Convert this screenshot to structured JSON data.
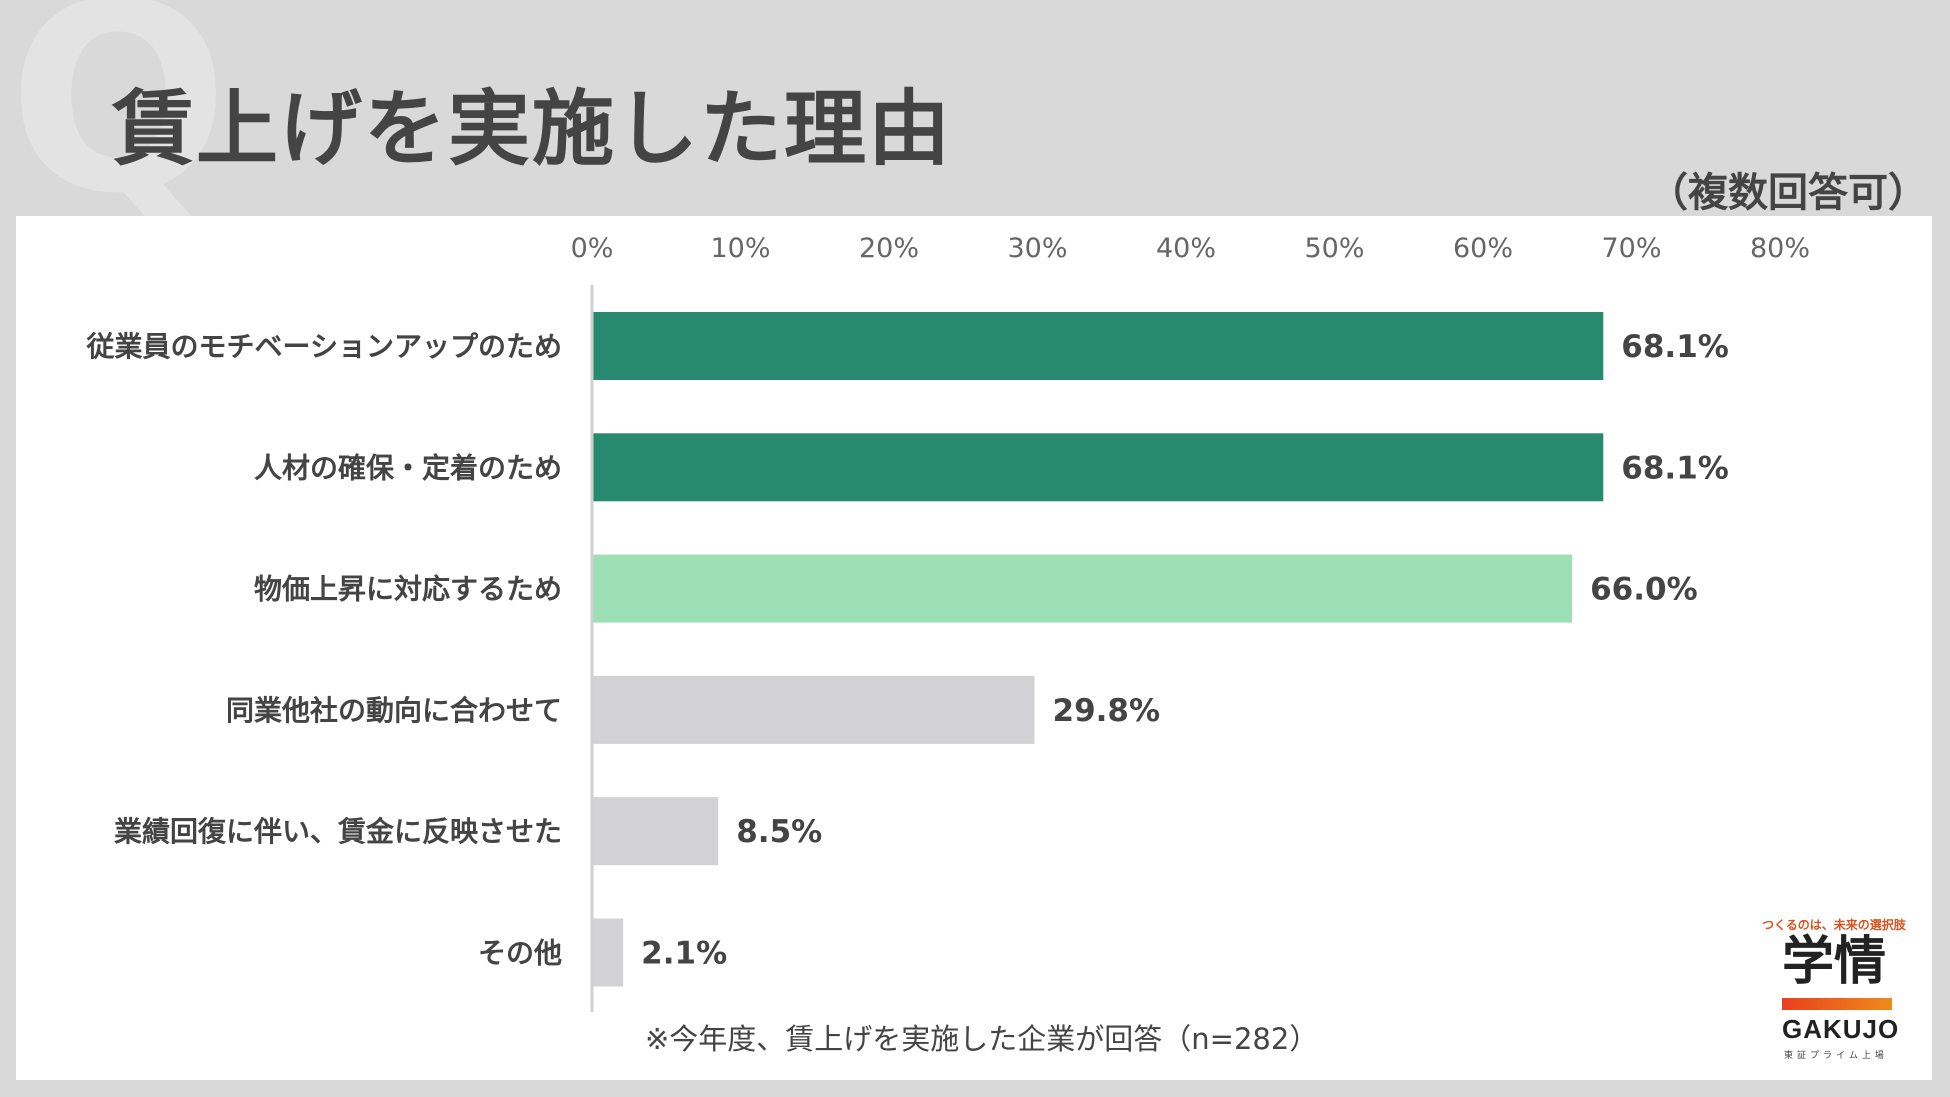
{
  "watermark": "Q",
  "title": "賃上げを実施した理由",
  "subtitle_note": "（複数回答可）",
  "footnote": "※今年度、賃上げを実施した企業が回答（n=282）",
  "logo": {
    "tagline": "つくるのは、未来の選択肢",
    "kanji": "学情",
    "english": "GAKUJO",
    "sub": "東証プライム上場"
  },
  "colors": {
    "dark_green": "#278a6e",
    "light_green": "#9ddfb5",
    "gray": "#d2d1d3",
    "axis": "#d0d0d0",
    "text": "#444444"
  },
  "chart_data": {
    "type": "bar",
    "orientation": "horizontal",
    "categories": [
      "従業員のモチベーションアップのため",
      "人材の確保・定着のため",
      "物価上昇に対応するため",
      "同業他社の動向に合わせて",
      "業績回復に伴い、賃金に反映させた",
      "その他"
    ],
    "values": [
      68.1,
      68.1,
      66.0,
      29.8,
      8.5,
      2.1
    ],
    "value_labels": [
      "68.1%",
      "68.1%",
      "66.0%",
      "29.8%",
      "8.5%",
      "2.1%"
    ],
    "bar_colors": [
      "dark_green",
      "dark_green",
      "light_green",
      "gray",
      "gray",
      "gray"
    ],
    "xlim": [
      0,
      80
    ],
    "x_ticks": [
      "0%",
      "10%",
      "20%",
      "30%",
      "40%",
      "50%",
      "60%",
      "70%",
      "80%"
    ],
    "grid": false,
    "legend": "none"
  }
}
